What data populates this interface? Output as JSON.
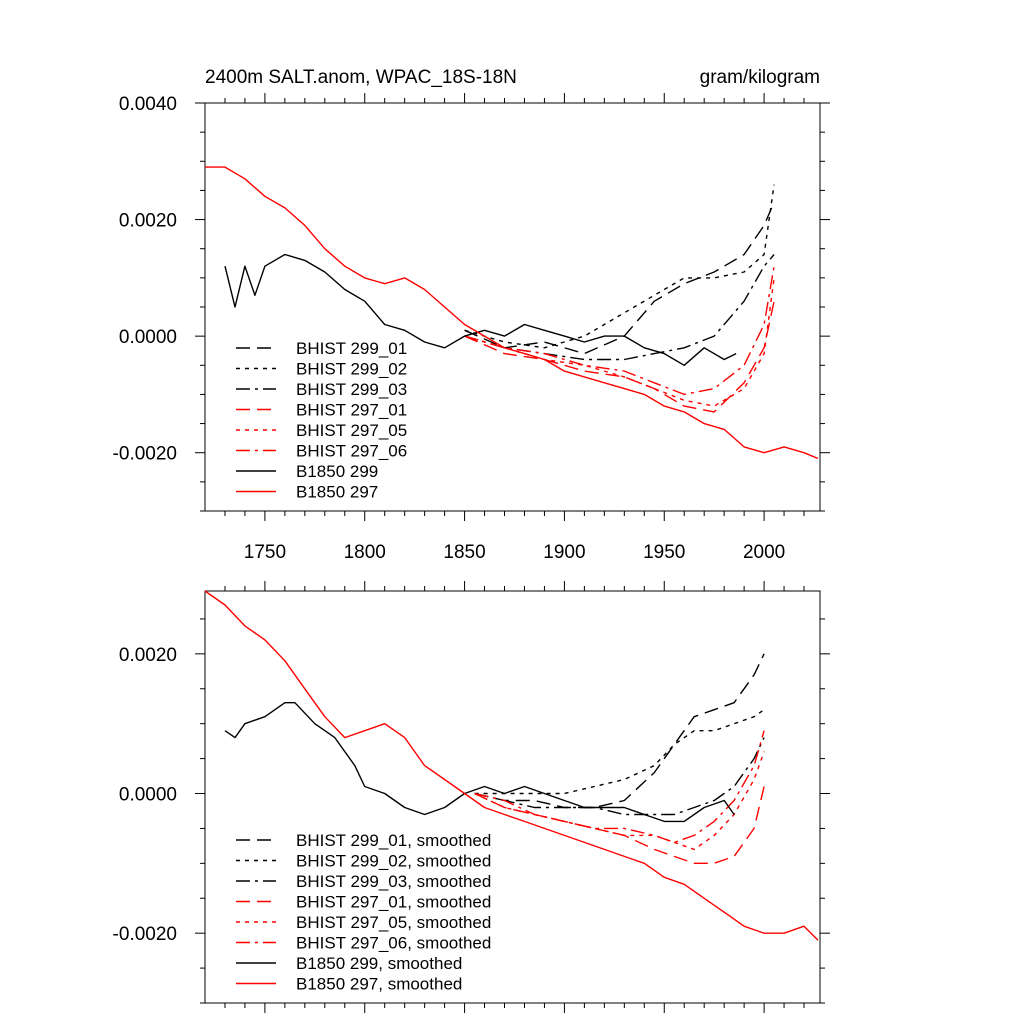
{
  "chart_data": [
    {
      "type": "line",
      "title_left": "2400m SALT.anom, WPAC_18S-18N",
      "title_right": "gram/kilogram",
      "xlim": [
        1720,
        2028
      ],
      "ylim": [
        -0.003,
        0.004
      ],
      "xticks": [
        1750,
        1800,
        1850,
        1900,
        1950,
        2000
      ],
      "yticks": [
        -0.002,
        0.0,
        0.002,
        0.004
      ],
      "ytick_labels": [
        "-0.0020",
        "0.0000",
        "0.0020",
        "0.0040"
      ],
      "xtick_labels": [
        "1750",
        "1800",
        "1850",
        "1900",
        "1950",
        "2000"
      ],
      "legend_position": "bottom-left",
      "series": [
        {
          "name": "BHIST 299_01",
          "color": "#000000",
          "dash": "dash",
          "x": [
            1850,
            1870,
            1890,
            1910,
            1930,
            1945,
            1960,
            1975,
            1990,
            2000,
            2005
          ],
          "y": [
            0.0001,
            -0.0002,
            -0.0001,
            -0.0003,
            0.0,
            0.0006,
            0.0009,
            0.0011,
            0.0014,
            0.0019,
            0.0023
          ]
        },
        {
          "name": "BHIST 299_02",
          "color": "#000000",
          "dash": "dot",
          "x": [
            1850,
            1870,
            1890,
            1910,
            1930,
            1945,
            1960,
            1975,
            1990,
            2000,
            2005
          ],
          "y": [
            0.0001,
            -0.0001,
            -0.0002,
            0.0,
            0.0004,
            0.0007,
            0.001,
            0.001,
            0.0011,
            0.0014,
            0.0026
          ]
        },
        {
          "name": "BHIST 299_03",
          "color": "#000000",
          "dash": "dashdot",
          "x": [
            1850,
            1870,
            1890,
            1910,
            1930,
            1945,
            1960,
            1975,
            1990,
            2000,
            2005
          ],
          "y": [
            0.0,
            -0.0002,
            -0.0003,
            -0.0004,
            -0.0004,
            -0.0003,
            -0.0002,
            0.0,
            0.0006,
            0.0012,
            0.0014
          ]
        },
        {
          "name": "BHIST 297_01",
          "color": "#ff0000",
          "dash": "dash",
          "x": [
            1850,
            1870,
            1890,
            1910,
            1930,
            1945,
            1960,
            1975,
            1990,
            2000,
            2005
          ],
          "y": [
            0.0,
            -0.0003,
            -0.0004,
            -0.0006,
            -0.0007,
            -0.0009,
            -0.0012,
            -0.0013,
            -0.0008,
            -0.0002,
            0.0006
          ]
        },
        {
          "name": "BHIST 297_05",
          "color": "#ff0000",
          "dash": "dot",
          "x": [
            1850,
            1870,
            1890,
            1910,
            1930,
            1945,
            1960,
            1975,
            1990,
            2000,
            2005
          ],
          "y": [
            0.0,
            -0.0002,
            -0.0004,
            -0.0005,
            -0.0007,
            -0.0009,
            -0.0011,
            -0.0012,
            -0.0009,
            -0.0003,
            0.001
          ]
        },
        {
          "name": "BHIST 297_06",
          "color": "#ff0000",
          "dash": "dashdot",
          "x": [
            1850,
            1870,
            1890,
            1910,
            1930,
            1945,
            1960,
            1975,
            1990,
            2000,
            2005
          ],
          "y": [
            0.0,
            -0.0002,
            -0.0003,
            -0.0005,
            -0.0006,
            -0.0008,
            -0.001,
            -0.0009,
            -0.0005,
            0.0002,
            0.0012
          ]
        },
        {
          "name": "B1850 299",
          "color": "#000000",
          "dash": "solid",
          "x": [
            1730,
            1735,
            1740,
            1745,
            1750,
            1760,
            1770,
            1780,
            1790,
            1800,
            1810,
            1820,
            1830,
            1840,
            1850,
            1860,
            1870,
            1880,
            1890,
            1900,
            1910,
            1920,
            1930,
            1940,
            1950,
            1960,
            1970,
            1980,
            1986
          ],
          "y": [
            0.0012,
            0.0005,
            0.0012,
            0.0007,
            0.0012,
            0.0014,
            0.0013,
            0.0011,
            0.0008,
            0.0006,
            0.0002,
            0.0001,
            -0.0001,
            -0.0002,
            0.0,
            0.0001,
            0.0,
            0.0002,
            0.0001,
            0.0,
            -0.0001,
            0.0,
            0.0,
            -0.0002,
            -0.0003,
            -0.0005,
            -0.0002,
            -0.0004,
            -0.0003
          ]
        },
        {
          "name": "B1850 297",
          "color": "#ff0000",
          "dash": "solid",
          "x": [
            1720,
            1730,
            1740,
            1750,
            1760,
            1770,
            1780,
            1790,
            1800,
            1810,
            1820,
            1830,
            1840,
            1850,
            1860,
            1870,
            1880,
            1890,
            1900,
            1910,
            1920,
            1930,
            1940,
            1950,
            1960,
            1970,
            1980,
            1990,
            2000,
            2010,
            2020,
            2027
          ],
          "y": [
            0.0029,
            0.0029,
            0.0027,
            0.0024,
            0.0022,
            0.0019,
            0.0015,
            0.0012,
            0.001,
            0.0009,
            0.001,
            0.0008,
            0.0005,
            0.0002,
            0.0,
            -0.0002,
            -0.0003,
            -0.0004,
            -0.0006,
            -0.0007,
            -0.0008,
            -0.0009,
            -0.001,
            -0.0012,
            -0.0013,
            -0.0015,
            -0.0016,
            -0.0019,
            -0.002,
            -0.0019,
            -0.002,
            -0.0021
          ]
        }
      ]
    },
    {
      "type": "line",
      "xlim": [
        1720,
        2028
      ],
      "ylim": [
        -0.003,
        0.0029
      ],
      "yticks": [
        -0.002,
        0.0,
        0.002
      ],
      "ytick_labels": [
        "-0.0020",
        "0.0000",
        "0.0020"
      ],
      "legend_position": "bottom-left",
      "series": [
        {
          "name": "BHIST 299_01, smoothed",
          "color": "#000000",
          "dash": "dash",
          "x": [
            1855,
            1870,
            1885,
            1900,
            1915,
            1930,
            1945,
            1955,
            1965,
            1975,
            1985,
            1995,
            2000
          ],
          "y": [
            0.0,
            -0.0001,
            -0.0001,
            -0.0002,
            -0.0002,
            -0.0001,
            0.0003,
            0.0007,
            0.0011,
            0.0012,
            0.0013,
            0.0017,
            0.002
          ]
        },
        {
          "name": "BHIST 299_02, smoothed",
          "color": "#000000",
          "dash": "dot",
          "x": [
            1855,
            1870,
            1885,
            1900,
            1915,
            1930,
            1945,
            1955,
            1965,
            1975,
            1985,
            1995,
            2000
          ],
          "y": [
            0.0,
            0.0,
            0.0,
            0.0,
            0.0001,
            0.0002,
            0.0004,
            0.0007,
            0.0009,
            0.0009,
            0.001,
            0.0011,
            0.0012
          ]
        },
        {
          "name": "BHIST 299_03, smoothed",
          "color": "#000000",
          "dash": "dashdot",
          "x": [
            1855,
            1870,
            1885,
            1900,
            1915,
            1930,
            1945,
            1955,
            1965,
            1975,
            1985,
            1995,
            2000
          ],
          "y": [
            0.0,
            -0.0001,
            -0.0002,
            -0.0002,
            -0.0002,
            -0.0003,
            -0.0003,
            -0.0003,
            -0.0002,
            -0.0001,
            0.0001,
            0.0005,
            0.0008
          ]
        },
        {
          "name": "BHIST 297_01, smoothed",
          "color": "#ff0000",
          "dash": "dash",
          "x": [
            1855,
            1870,
            1885,
            1900,
            1915,
            1930,
            1945,
            1955,
            1965,
            1975,
            1985,
            1995,
            2000
          ],
          "y": [
            0.0,
            -0.0002,
            -0.0003,
            -0.0004,
            -0.0005,
            -0.0006,
            -0.0008,
            -0.0009,
            -0.001,
            -0.001,
            -0.0009,
            -0.0005,
            0.0001
          ]
        },
        {
          "name": "BHIST 297_05, smoothed",
          "color": "#ff0000",
          "dash": "dot",
          "x": [
            1855,
            1870,
            1885,
            1900,
            1915,
            1930,
            1945,
            1955,
            1965,
            1975,
            1985,
            1995,
            2000
          ],
          "y": [
            0.0,
            -0.0002,
            -0.0003,
            -0.0004,
            -0.0005,
            -0.0006,
            -0.0006,
            -0.0007,
            -0.0008,
            -0.0006,
            -0.0003,
            0.0002,
            0.0006
          ]
        },
        {
          "name": "BHIST 297_06, smoothed",
          "color": "#ff0000",
          "dash": "dashdot",
          "x": [
            1855,
            1870,
            1885,
            1900,
            1915,
            1930,
            1945,
            1955,
            1965,
            1975,
            1985,
            1995,
            2000
          ],
          "y": [
            0.0,
            -0.0001,
            -0.0003,
            -0.0004,
            -0.0005,
            -0.0005,
            -0.0006,
            -0.0007,
            -0.0006,
            -0.0004,
            -0.0001,
            0.0004,
            0.0009
          ]
        },
        {
          "name": "B1850 299, smoothed",
          "color": "#000000",
          "dash": "solid",
          "x": [
            1730,
            1735,
            1740,
            1750,
            1760,
            1765,
            1775,
            1785,
            1795,
            1800,
            1810,
            1820,
            1830,
            1840,
            1850,
            1860,
            1870,
            1880,
            1890,
            1900,
            1910,
            1920,
            1930,
            1940,
            1950,
            1960,
            1970,
            1980,
            1985
          ],
          "y": [
            0.0009,
            0.0008,
            0.001,
            0.0011,
            0.0013,
            0.0013,
            0.001,
            0.0008,
            0.0004,
            0.0001,
            0.0,
            -0.0002,
            -0.0003,
            -0.0002,
            0.0,
            0.0001,
            0.0,
            0.0001,
            0.0,
            -0.0001,
            -0.0002,
            -0.0002,
            -0.0002,
            -0.0003,
            -0.0004,
            -0.0004,
            -0.0002,
            -0.0001,
            -0.0003
          ]
        },
        {
          "name": "B1850 297, smoothed",
          "color": "#ff0000",
          "dash": "solid",
          "x": [
            1720,
            1730,
            1740,
            1750,
            1760,
            1770,
            1780,
            1790,
            1800,
            1810,
            1820,
            1830,
            1840,
            1850,
            1860,
            1870,
            1880,
            1890,
            1900,
            1910,
            1920,
            1930,
            1940,
            1950,
            1960,
            1970,
            1980,
            1990,
            2000,
            2010,
            2020,
            2027
          ],
          "y": [
            0.0029,
            0.0027,
            0.0024,
            0.0022,
            0.0019,
            0.0015,
            0.0011,
            0.0008,
            0.0009,
            0.001,
            0.0008,
            0.0004,
            0.0002,
            0.0,
            -0.0002,
            -0.0003,
            -0.0004,
            -0.0005,
            -0.0006,
            -0.0007,
            -0.0008,
            -0.0009,
            -0.001,
            -0.0012,
            -0.0013,
            -0.0015,
            -0.0017,
            -0.0019,
            -0.002,
            -0.002,
            -0.0019,
            -0.0021
          ]
        }
      ]
    }
  ]
}
